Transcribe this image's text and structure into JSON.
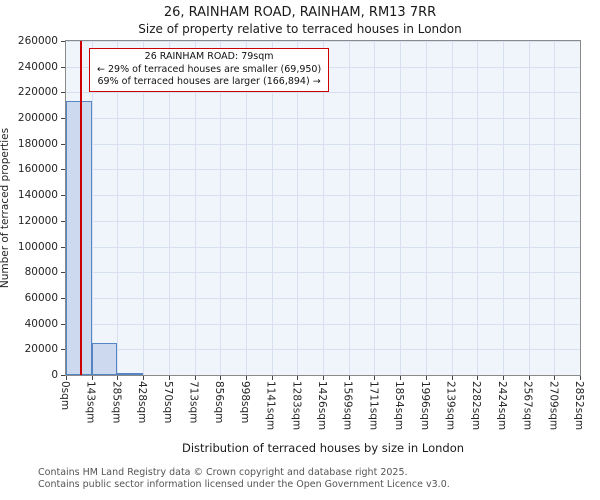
{
  "footer": {
    "line1": "Contains HM Land Registry data © Crown copyright and database right 2025.",
    "line2": "Contains public sector information licensed under the Open Government Licence v3.0."
  },
  "chart_data": {
    "type": "bar",
    "title": "26, RAINHAM ROAD, RAINHAM, RM13 7RR",
    "subtitle": "Size of property relative to terraced houses in London",
    "xlabel": "Distribution of terraced houses by size in London",
    "ylabel": "Number of terraced properties",
    "ylim": [
      0,
      260000
    ],
    "y_tick_step": 20000,
    "x_tick_labels": [
      "0sqm",
      "143sqm",
      "285sqm",
      "428sqm",
      "570sqm",
      "713sqm",
      "856sqm",
      "998sqm",
      "1141sqm",
      "1283sqm",
      "1426sqm",
      "1569sqm",
      "1711sqm",
      "1854sqm",
      "1996sqm",
      "2139sqm",
      "2282sqm",
      "2424sqm",
      "2567sqm",
      "2709sqm",
      "2852sqm"
    ],
    "bin_edges_sqm": [
      0,
      143,
      285,
      428,
      570,
      713,
      856,
      998,
      1141,
      1283,
      1426,
      1569,
      1711,
      1854,
      1996,
      2139,
      2282,
      2424,
      2567,
      2709,
      2852
    ],
    "values": [
      213500,
      25000,
      1800,
      0,
      0,
      0,
      0,
      0,
      0,
      0,
      0,
      0,
      0,
      0,
      0,
      0,
      0,
      0,
      0,
      0
    ],
    "grid": true,
    "marker": {
      "property_label": "26 RAINHAM ROAD",
      "size_sqm": 79,
      "smaller": {
        "percent": 29,
        "count": 69950
      },
      "larger": {
        "percent": 69,
        "count": 166894
      },
      "color": "#cc0000"
    },
    "annotation": {
      "lines": [
        "26 RAINHAM ROAD: 79sqm",
        "← 29% of terraced houses are smaller (69,950)",
        "69% of terraced houses are larger (166,894) →"
      ]
    },
    "colors": {
      "bar_fill": "#ccd9ee",
      "bar_edge": "#5585c2",
      "grid": "#d6e0f0",
      "plot_bg": "#f0f4fb",
      "marker_line": "#cc0000"
    }
  }
}
